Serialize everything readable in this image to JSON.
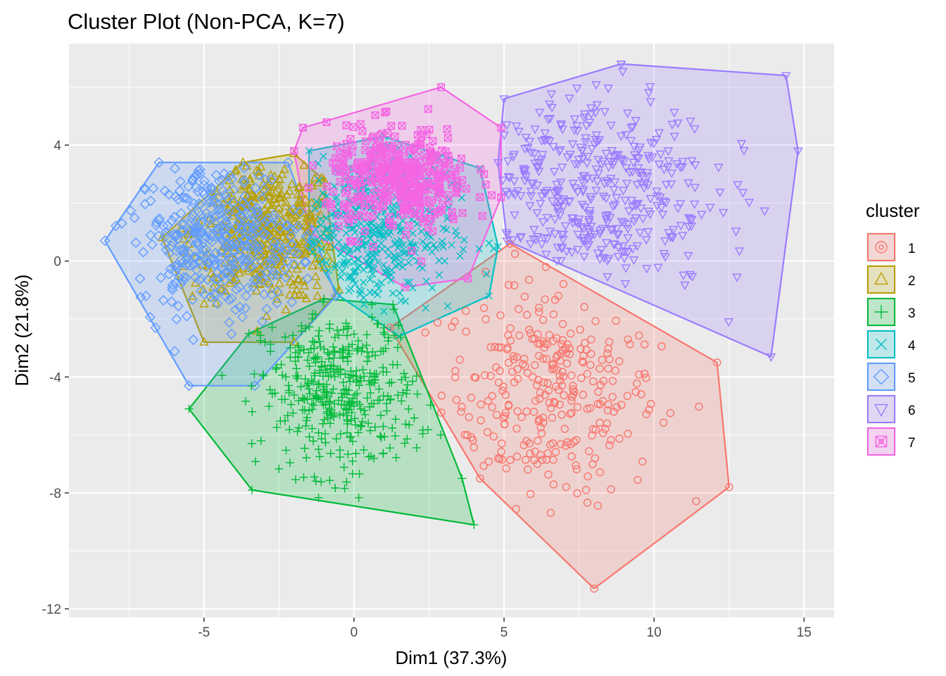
{
  "chart_data": {
    "type": "scatter",
    "title": "Cluster Plot (Non-PCA, K=7)",
    "xlabel": "Dim1 (37.3%)",
    "ylabel": "Dim2 (21.8%)",
    "xlim": [
      -9.5,
      16
    ],
    "ylim": [
      -12.3,
      7.5
    ],
    "x_ticks": [
      -5,
      0,
      5,
      10,
      15
    ],
    "x_tick_labels": [
      "-5",
      "0",
      "5",
      "10",
      "15"
    ],
    "y_ticks": [
      4,
      0,
      -4,
      -8,
      -12
    ],
    "y_tick_labels": [
      "4",
      "0",
      "-4",
      "-8",
      "-12"
    ],
    "grid": true,
    "legend": {
      "title": "cluster",
      "position": "right"
    },
    "series": [
      {
        "name": "1",
        "color": "#F8766D",
        "shape": "circle",
        "n_points": 300,
        "centroid": [
          6.5,
          -4.5
        ],
        "spread": [
          1.8,
          1.9
        ],
        "hull": [
          [
            8.0,
            -11.3
          ],
          [
            12.5,
            -7.8
          ],
          [
            12.1,
            -3.5
          ],
          [
            5.2,
            0.6
          ],
          [
            1.2,
            -2.3
          ],
          [
            4.2,
            -7.5
          ]
        ]
      },
      {
        "name": "2",
        "color": "#B79F00",
        "shape": "triangle",
        "n_points": 450,
        "centroid": [
          -3.0,
          1.0
        ],
        "spread": [
          1.2,
          1.2
        ],
        "hull": [
          [
            -6.4,
            0.8
          ],
          [
            -3.7,
            3.4
          ],
          [
            -2.0,
            3.7
          ],
          [
            -1.0,
            2.8
          ],
          [
            -0.5,
            -1.0
          ],
          [
            -2.0,
            -2.8
          ],
          [
            -5.0,
            -2.8
          ]
        ]
      },
      {
        "name": "3",
        "color": "#00BA38",
        "shape": "plus",
        "n_points": 400,
        "centroid": [
          -0.5,
          -4.5
        ],
        "spread": [
          1.3,
          1.4
        ],
        "hull": [
          [
            -5.5,
            -5.1
          ],
          [
            -3.4,
            -7.9
          ],
          [
            4.0,
            -9.1
          ],
          [
            3.6,
            -7.5
          ],
          [
            1.3,
            -1.5
          ],
          [
            -1.0,
            -1.3
          ],
          [
            -3.5,
            -2.5
          ]
        ]
      },
      {
        "name": "4",
        "color": "#00BFC4",
        "shape": "cross",
        "n_points": 400,
        "centroid": [
          0.5,
          1.0
        ],
        "spread": [
          1.4,
          1.4
        ],
        "hull": [
          [
            -1.5,
            3.8
          ],
          [
            1.0,
            4.3
          ],
          [
            4.2,
            3.2
          ],
          [
            4.8,
            0.5
          ],
          [
            4.5,
            -1.2
          ],
          [
            1.5,
            -2.6
          ],
          [
            -0.5,
            -1.2
          ],
          [
            -1.5,
            0.5
          ]
        ]
      },
      {
        "name": "5",
        "color": "#619CFF",
        "shape": "diamond",
        "n_points": 400,
        "centroid": [
          -4.5,
          0.8
        ],
        "spread": [
          1.4,
          1.3
        ],
        "hull": [
          [
            -6.5,
            3.4
          ],
          [
            -2.2,
            3.4
          ],
          [
            -0.6,
            -1.2
          ],
          [
            -3.3,
            -4.3
          ],
          [
            -5.5,
            -4.3
          ],
          [
            -8.3,
            0.7
          ]
        ]
      },
      {
        "name": "6",
        "color": "#9A7BFF",
        "shape": "triangle-down",
        "n_points": 400,
        "centroid": [
          7.5,
          2.5
        ],
        "spread": [
          2.2,
          1.8
        ],
        "hull": [
          [
            8.9,
            6.8
          ],
          [
            14.4,
            6.4
          ],
          [
            14.8,
            3.8
          ],
          [
            13.9,
            -3.3
          ],
          [
            5.1,
            0.7
          ],
          [
            4.8,
            3.4
          ],
          [
            5.0,
            5.6
          ]
        ]
      },
      {
        "name": "7",
        "color": "#F564E3",
        "shape": "square-cross",
        "n_points": 400,
        "centroid": [
          1.5,
          2.8
        ],
        "spread": [
          1.2,
          0.9
        ],
        "hull": [
          [
            -1.7,
            4.6
          ],
          [
            2.9,
            6.0
          ],
          [
            4.9,
            4.6
          ],
          [
            4.9,
            2.2
          ],
          [
            3.8,
            -0.6
          ],
          [
            1.7,
            -0.9
          ],
          [
            -1.5,
            1.0
          ],
          [
            -2.0,
            3.8
          ]
        ]
      }
    ]
  }
}
